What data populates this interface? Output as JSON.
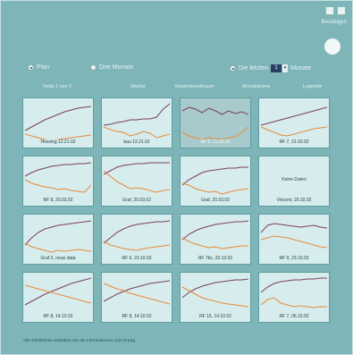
{
  "header": {
    "icons": [
      "minimize-icon",
      "close-icon"
    ],
    "label": "Bestätigen"
  },
  "options": {
    "radio1": "Plan",
    "radio2": "Drei Monate",
    "radio3": "Die letzten",
    "count": "1",
    "unit": "Monate"
  },
  "tabs": [
    "Seite 1 von 2",
    "Woche",
    "Vorjahreszeitraum",
    "Monatskurve",
    "Legende"
  ],
  "tiles": [
    {
      "caption": "Hessing 12.21.02",
      "purple": [
        34,
        30,
        26,
        22,
        19,
        16,
        13,
        11,
        9,
        8,
        7
      ],
      "orange": [
        38,
        40,
        42,
        44,
        45,
        44,
        43,
        42,
        41,
        40,
        39
      ]
    },
    {
      "caption": "bau 13.21.02",
      "purple": [
        28,
        27,
        25,
        24,
        22,
        22,
        21,
        21,
        19,
        10,
        4
      ],
      "orange": [
        30,
        33,
        35,
        36,
        40,
        38,
        35,
        37,
        42,
        40,
        38
      ]
    },
    {
      "caption": "RF 5, 21.03.02",
      "purple": [
        12,
        8,
        10,
        14,
        9,
        12,
        16,
        12,
        15,
        13,
        16
      ],
      "orange": [
        36,
        40,
        42,
        44,
        42,
        43,
        44,
        42,
        41,
        36,
        30
      ]
    },
    {
      "caption": "RF 7, 21.03.02",
      "purple": [
        28,
        26,
        24,
        22,
        20,
        18,
        16,
        14,
        12,
        10,
        8
      ],
      "orange": [
        30,
        33,
        36,
        39,
        40,
        38,
        36,
        34,
        32,
        31,
        30
      ]
    },
    {
      "caption": "RF 8, 20.03.02",
      "purple": [
        20,
        16,
        13,
        11,
        9,
        8,
        7,
        7,
        6,
        6,
        5
      ],
      "orange": [
        24,
        28,
        30,
        32,
        33,
        35,
        34,
        36,
        37,
        38,
        30
      ]
    },
    {
      "caption": "Graf, 20.03.02",
      "purple": [
        18,
        14,
        10,
        8,
        7,
        6,
        6,
        5,
        5,
        5,
        5
      ],
      "orange": [
        14,
        20,
        26,
        30,
        34,
        33,
        34,
        36,
        38,
        36,
        35
      ]
    },
    {
      "caption": "Graf, 20.03.02",
      "purple": [
        30,
        24,
        20,
        16,
        14,
        13,
        12,
        11,
        11,
        10,
        10
      ],
      "orange": [
        28,
        30,
        34,
        36,
        38,
        37,
        40,
        38,
        36,
        35,
        34
      ]
    },
    {
      "caption": "Vincent, 20.10.02",
      "empty": "Keine Daten",
      "purple": [],
      "orange": []
    },
    {
      "caption": "Graf 2, neue data",
      "purple": [
        32,
        24,
        18,
        14,
        12,
        10,
        9,
        8,
        7,
        6,
        5
      ],
      "orange": [
        30,
        34,
        36,
        38,
        40,
        38,
        39,
        38,
        37,
        38,
        39
      ]
    },
    {
      "caption": "RF 6, 23.10.02",
      "purple": [
        30,
        24,
        18,
        14,
        11,
        9,
        8,
        7,
        6,
        6,
        5
      ],
      "orange": [
        28,
        32,
        34,
        36,
        37,
        38,
        36,
        35,
        34,
        33,
        32
      ]
    },
    {
      "caption": "RF 7bc, 22.10.02",
      "purple": [
        26,
        20,
        16,
        13,
        11,
        9,
        8,
        7,
        6,
        6,
        5
      ],
      "orange": [
        24,
        28,
        31,
        33,
        35,
        34,
        36,
        35,
        34,
        33,
        33
      ]
    },
    {
      "caption": "RF 9, 23.10.02",
      "purple": [
        18,
        10,
        8,
        9,
        10,
        11,
        12,
        11,
        10,
        12,
        13
      ],
      "orange": [
        26,
        24,
        22,
        23,
        24,
        26,
        28,
        30,
        32,
        34,
        35
      ]
    },
    {
      "caption": "RF 8, 14.10.02",
      "purple": [
        34,
        30,
        26,
        22,
        19,
        16,
        13,
        10,
        8,
        6,
        4
      ],
      "orange": [
        12,
        14,
        16,
        18,
        20,
        22,
        24,
        26,
        28,
        30,
        32
      ]
    },
    {
      "caption": "RF 8, 14.10.02",
      "purple": [
        30,
        26,
        22,
        19,
        16,
        14,
        12,
        10,
        9,
        8,
        7
      ],
      "orange": [
        10,
        13,
        16,
        18,
        21,
        23,
        25,
        27,
        29,
        31,
        33
      ]
    },
    {
      "caption": "RF 16, 14.10.02",
      "purple": [
        26,
        20,
        16,
        13,
        11,
        9,
        8,
        7,
        6,
        6,
        5
      ],
      "orange": [
        14,
        18,
        22,
        26,
        28,
        30,
        32,
        33,
        34,
        35,
        36
      ]
    },
    {
      "caption": "RF 7, 06.10.02",
      "purple": [
        20,
        14,
        10,
        8,
        7,
        6,
        6,
        5,
        5,
        4,
        4
      ],
      "orange": [
        34,
        28,
        26,
        32,
        34,
        36,
        35,
        36,
        37,
        36,
        36
      ]
    }
  ],
  "selected_tile": 2,
  "footer": "Alle Rückblicke enthalten Sie die Informationen zum Ertrag",
  "colors": {
    "purple": "#7a3e63",
    "orange": "#e78a3a",
    "tile_bg": "#d7ecec",
    "background": "#7db5b8"
  }
}
